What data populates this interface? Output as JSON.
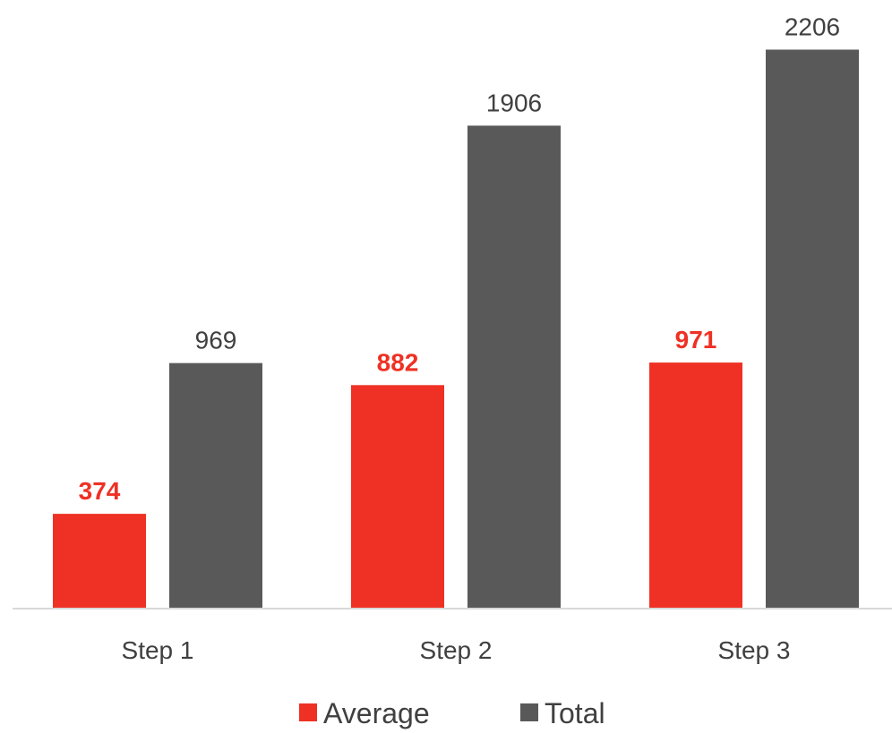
{
  "chart_data": {
    "type": "bar",
    "categories": [
      "Step 1",
      "Step 2",
      "Step 3"
    ],
    "series": [
      {
        "name": "Average",
        "values": [
          374,
          882,
          971
        ],
        "color": "#EE3124",
        "label_color": "#EE3124",
        "label_bold": true
      },
      {
        "name": "Total",
        "values": [
          969,
          1906,
          2206
        ],
        "color": "#595959",
        "label_color": "#404040",
        "label_bold": false
      }
    ],
    "ylim": [
      0,
      2250
    ],
    "grid": false,
    "axis_color": "#D9D9D9",
    "legend_position": "bottom"
  }
}
